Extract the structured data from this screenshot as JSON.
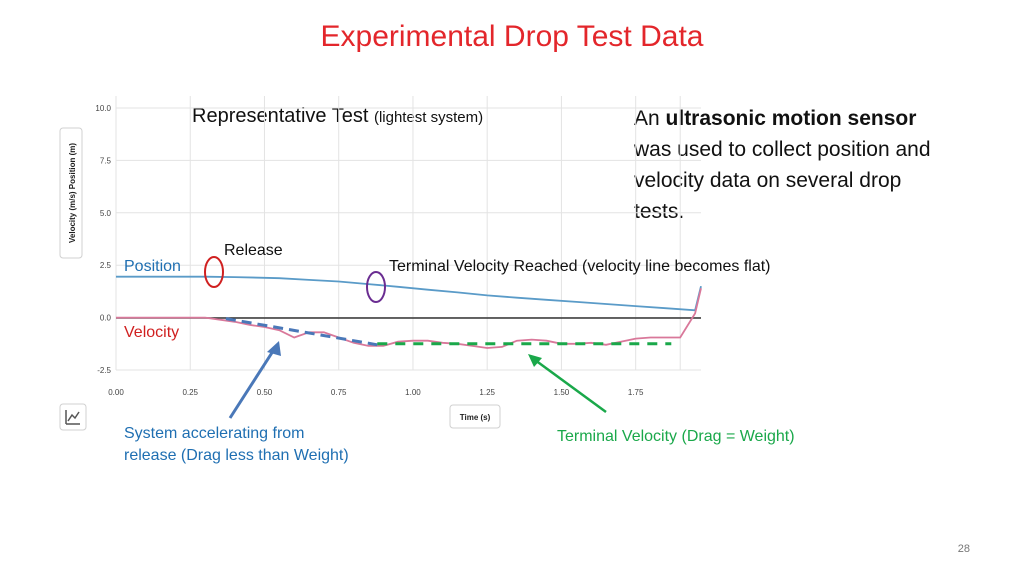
{
  "slide": {
    "title": "Experimental Drop Test Data",
    "representative_main": "Representative Test ",
    "representative_small": "(lightest system)",
    "desc_prefix": "An ",
    "desc_bold": "ultrasonic motion sensor",
    "desc_rest": " was used to collect position and velocity data on several drop tests.",
    "page_number": "28"
  },
  "annotations": {
    "position": "Position",
    "velocity": "Velocity",
    "release": "Release",
    "terminal_reached": "Terminal Velocity Reached  (velocity line becomes flat)",
    "accelerating_line1": "System accelerating from",
    "accelerating_line2": "release (Drag less than Weight)",
    "terminal_drag": "Terminal Velocity (Drag = Weight)"
  },
  "colors": {
    "title": "#e3262b",
    "position_line": "#5a9bc8",
    "velocity_line": "#d9789a",
    "blue_text": "#1f6fb2",
    "red_text": "#d02020",
    "green": "#1aa84a",
    "arrow_blue": "#4a78b8",
    "purple": "#6a2c91"
  },
  "chart_data": {
    "type": "line",
    "xlabel": "Time (s)",
    "ylabel": "Velocity (m/s) Position (m)",
    "xlim": [
      0,
      1.97
    ],
    "ylim": [
      -2.5,
      10
    ],
    "x_ticks": [
      "0.00",
      "0.25",
      "0.50",
      "0.75",
      "1.00",
      "1.25",
      "1.50",
      "1.75"
    ],
    "y_ticks": [
      "10.0",
      "7.5",
      "5.0",
      "2.5",
      "0.0",
      "-2.5"
    ],
    "grid": true,
    "series": [
      {
        "name": "Position",
        "x": [
          0,
          0.1,
          0.2,
          0.3,
          0.4,
          0.5,
          0.55,
          0.65,
          0.75,
          0.85,
          0.95,
          1.05,
          1.15,
          1.25,
          1.35,
          1.45,
          1.55,
          1.65,
          1.75,
          1.85,
          1.95,
          1.97
        ],
        "y": [
          1.95,
          1.95,
          1.95,
          1.95,
          1.93,
          1.9,
          1.88,
          1.8,
          1.72,
          1.6,
          1.47,
          1.33,
          1.2,
          1.06,
          0.95,
          0.85,
          0.75,
          0.65,
          0.55,
          0.45,
          0.35,
          1.5
        ]
      },
      {
        "name": "Velocity",
        "x": [
          0,
          0.1,
          0.2,
          0.3,
          0.35,
          0.4,
          0.45,
          0.5,
          0.55,
          0.6,
          0.65,
          0.7,
          0.75,
          0.8,
          0.85,
          0.9,
          0.95,
          1.0,
          1.05,
          1.1,
          1.15,
          1.2,
          1.25,
          1.3,
          1.35,
          1.4,
          1.45,
          1.5,
          1.55,
          1.6,
          1.65,
          1.7,
          1.75,
          1.8,
          1.85,
          1.9,
          1.95,
          1.97
        ],
        "y": [
          0,
          0,
          0,
          0,
          -0.1,
          -0.2,
          -0.35,
          -0.45,
          -0.6,
          -0.95,
          -0.7,
          -0.7,
          -0.95,
          -1.2,
          -1.35,
          -1.35,
          -1.15,
          -1.1,
          -1.1,
          -1.2,
          -1.25,
          -1.35,
          -1.45,
          -1.4,
          -1.1,
          -1.05,
          -1.1,
          -1.25,
          -1.25,
          -1.2,
          -1.3,
          -1.15,
          -1.0,
          -0.95,
          -0.95,
          -0.95,
          0.2,
          1.4
        ]
      }
    ],
    "accel_trend": {
      "x": [
        0.37,
        0.88
      ],
      "y": [
        -0.05,
        -1.3
      ]
    },
    "terminal_trend": {
      "x": [
        0.88,
        1.87
      ],
      "y": [
        -1.25,
        -1.25
      ]
    }
  }
}
